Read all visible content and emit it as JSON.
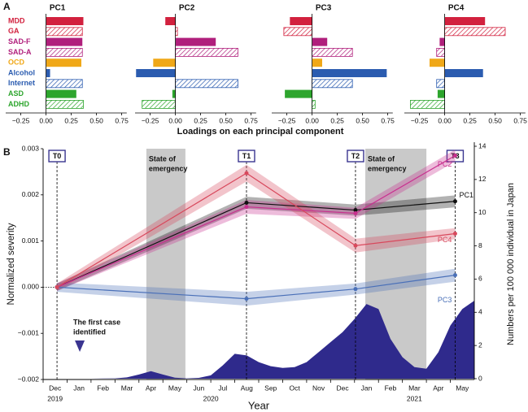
{
  "chart_data": [
    {
      "type": "bar",
      "orientation": "horizontal",
      "panel_label": "A",
      "xlabel": "Loadings on each principal component",
      "categories": [
        "MDD",
        "GA",
        "SAD-F",
        "SAD-A",
        "OCD",
        "Alcohol",
        "Internet",
        "ASD",
        "ADHD"
      ],
      "colors": [
        "#d2213e",
        "#d2213e",
        "#b01f7c",
        "#b01f7c",
        "#f0a818",
        "#2b5cb0",
        "#2b5cb0",
        "#2da52d",
        "#2da52d"
      ],
      "hatched": [
        false,
        true,
        false,
        true,
        false,
        false,
        true,
        false,
        true
      ],
      "panels": [
        {
          "title": "PC1",
          "values": [
            0.37,
            0.36,
            0.36,
            0.36,
            0.35,
            0.04,
            0.36,
            0.3,
            0.37
          ]
        },
        {
          "title": "PC2",
          "values": [
            -0.1,
            0.02,
            0.4,
            0.62,
            -0.22,
            -0.39,
            0.62,
            -0.03,
            -0.33
          ]
        },
        {
          "title": "PC3",
          "values": [
            -0.22,
            -0.28,
            0.15,
            0.4,
            0.1,
            0.74,
            0.4,
            -0.27,
            0.03
          ]
        },
        {
          "title": "PC4",
          "values": [
            0.4,
            0.6,
            -0.05,
            -0.08,
            -0.15,
            0.38,
            -0.08,
            -0.07,
            -0.34
          ]
        }
      ],
      "xlim": [
        -0.4,
        0.8
      ],
      "xticks": [
        {
          "value": -0.25,
          "label": "−0.25"
        },
        {
          "value": 0,
          "label": "0.00"
        },
        0.25,
        {
          "value": 0.5,
          "label": "0.50"
        },
        0.75
      ]
    },
    {
      "type": "line",
      "panel_label": "B",
      "xlabel": "Year",
      "ylabel": "Normalized severity",
      "y2label": "Numbers per 100 000 individual in Japan",
      "xlim": [
        0,
        18
      ],
      "xticks": [
        {
          "value": 0.5,
          "label": "Dec"
        },
        {
          "value": 1.5,
          "label": "Jan"
        },
        {
          "value": 2.5,
          "label": "Feb"
        },
        {
          "value": 3.5,
          "label": "Mar"
        },
        {
          "value": 4.5,
          "label": "Apr"
        },
        {
          "value": 5.5,
          "label": "May"
        },
        {
          "value": 6.5,
          "label": "Jun"
        },
        {
          "value": 7.5,
          "label": "Jul"
        },
        {
          "value": 8.5,
          "label": "Aug"
        },
        {
          "value": 9.5,
          "label": "Sep"
        },
        {
          "value": 10.5,
          "label": "Oct"
        },
        {
          "value": 11.5,
          "label": "Nov"
        },
        {
          "value": 12.5,
          "label": "Dec"
        },
        {
          "value": 13.5,
          "label": "Jan"
        },
        {
          "value": 14.5,
          "label": "Feb"
        },
        {
          "value": 15.5,
          "label": "Mar"
        },
        {
          "value": 16.5,
          "label": "Apr"
        },
        {
          "value": 17.5,
          "label": "May"
        }
      ],
      "years": [
        {
          "value": 0.5,
          "label": "2019"
        },
        {
          "value": 7,
          "label": "2020"
        },
        {
          "value": 15.5,
          "label": "2021"
        }
      ],
      "timepoints": [
        "T0",
        "T1",
        "T2",
        "T3"
      ],
      "x": [
        0.58,
        8.49,
        13.04,
        17.2
      ],
      "series": [
        {
          "name": "PC1",
          "color": "#111111",
          "values": [
            0,
            0.00183,
            0.00167,
            0.00186
          ],
          "errors": [
            8e-05,
            0.00013,
            0.00012,
            0.00013
          ]
        },
        {
          "name": "PC2",
          "color": "#c8308f",
          "values": [
            0,
            0.00174,
            0.0016,
            0.00285
          ],
          "errors": [
            8e-05,
            0.00015,
            0.00012,
            0.00013
          ]
        },
        {
          "name": "PC3",
          "color": "#4a70b8",
          "values": [
            0,
            -0.00025,
            -4e-05,
            0.00026
          ],
          "errors": [
            0.0001,
            0.00015,
            0.00012,
            0.00014
          ]
        },
        {
          "name": "PC4",
          "color": "#d8485c",
          "values": [
            0,
            0.00247,
            0.0009,
            0.00116
          ],
          "errors": [
            8e-05,
            0.00018,
            0.00015,
            0.00012
          ]
        }
      ],
      "ylim": [
        -0.002,
        0.003
      ],
      "yticks": [
        {
          "value": -0.002,
          "label": "−0.002"
        },
        {
          "value": -0.001,
          "label": "−0.001"
        },
        {
          "value": 0,
          "label": "0.000"
        },
        0.001,
        0.002,
        0.003
      ],
      "y2lim": [
        0,
        14
      ],
      "y2ticks": [
        0,
        2,
        4,
        6,
        8,
        10,
        12,
        14
      ],
      "cases": {
        "color": "#2f2a8c",
        "axis": "y2",
        "x": [
          0,
          0.5,
          1,
          1.5,
          2,
          2.5,
          3,
          3.5,
          4,
          4.5,
          5,
          5.5,
          6,
          6.5,
          7,
          7.5,
          8,
          8.5,
          9,
          9.5,
          10,
          10.5,
          11,
          11.5,
          12,
          12.5,
          13,
          13.5,
          14,
          14.5,
          15,
          15.5,
          16,
          16.5,
          17,
          17.5,
          18
        ],
        "values": [
          0,
          0,
          0,
          0,
          0,
          0.01,
          0.02,
          0.08,
          0.25,
          0.45,
          0.25,
          0.06,
          0.02,
          0.05,
          0.2,
          0.8,
          1.5,
          1.4,
          1.0,
          0.75,
          0.65,
          0.7,
          1.0,
          1.6,
          2.2,
          2.8,
          3.6,
          4.5,
          4.2,
          2.4,
          1.3,
          0.7,
          0.6,
          1.6,
          3.2,
          4.2,
          4.7
        ]
      },
      "spans": [
        {
          "label": [
            "State of",
            "emergency"
          ],
          "start": 4.31,
          "end": 5.94
        },
        {
          "label": [
            "State of",
            "emergency"
          ],
          "start": 13.45,
          "end": 16.0
        }
      ],
      "annotation": {
        "text": [
          "The first case",
          "identified"
        ],
        "x": 1.53
      }
    }
  ]
}
